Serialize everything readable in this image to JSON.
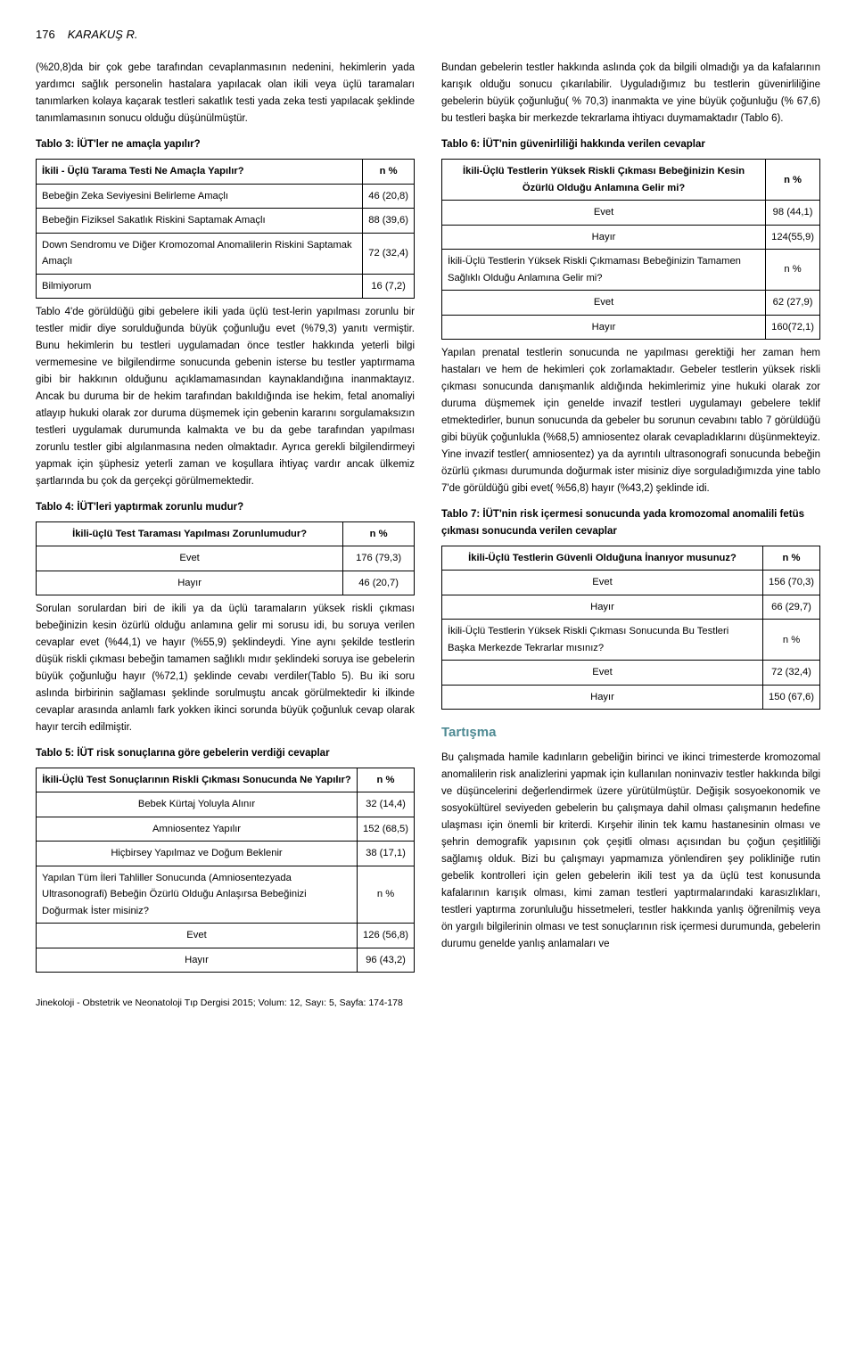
{
  "page_number": "176",
  "author": "KARAKUŞ R.",
  "left": {
    "p1": "(%20,8)da bir çok gebe tarafından cevaplanmasının nedenini, hekimlerin yada yardımcı sağlık personelin hastalara yapılacak olan ikili veya üçlü taramaları tanımlarken kolaya kaçarak testleri sakatlık testi yada zeka testi yapılacak şeklinde tanımlamasının sonucu olduğu düşünülmüştür.",
    "table3_caption": "Tablo 3: İÜT'ler ne amaçla yapılır?",
    "table3": {
      "header_q": "İkili - Üçlü Tarama Testi Ne Amaçla Yapılır?",
      "header_v": "n  %",
      "rows": [
        {
          "label": "Bebeğin Zeka Seviyesini Belirleme Amaçlı",
          "val": "46 (20,8)"
        },
        {
          "label": "Bebeğin Fiziksel Sakatlık Riskini Saptamak Amaçlı",
          "val": "88 (39,6)"
        },
        {
          "label": "Down Sendromu ve Diğer Kromozomal Anomalilerin Riskini Saptamak Amaçlı",
          "val": "72 (32,4)"
        },
        {
          "label": "Bilmiyorum",
          "val": "16 (7,2)"
        }
      ]
    },
    "p2": "Tablo 4'de görüldüğü gibi gebelere ikili yada üçlü test-lerin yapılması zorunlu bir testler midir diye sorulduğunda büyük çoğunluğu evet (%79,3) yanıtı vermiştir. Bunu hekimlerin bu testleri uygulamadan önce testler hakkında yeterli bilgi vermemesine ve bilgilendirme sonucunda gebenin isterse bu testler yaptırmama gibi bir hakkının olduğunu açıklamamasından kaynaklandığına inanmaktayız. Ancak bu duruma bir de hekim tarafından bakıldığında ise hekim, fetal anomaliyi atlayıp hukuki olarak zor duruma düşmemek için gebenin kararını sorgulamaksızın testleri uygulamak durumunda kalmakta ve bu da gebe tarafından yapılması zorunlu testler gibi algılanmasına neden olmaktadır. Ayrıca gerekli bilgilendirmeyi yapmak için şüphesiz yeterli zaman ve koşullara ihtiyaç vardır ancak ülkemiz şartlarında bu çok da gerçekçi görülmemektedir.",
    "table4_caption": "Tablo 4: İÜT'leri yaptırmak zorunlu mudur?",
    "table4": {
      "header_q": "İkili-üçlü Test Taraması Yapılması Zorunlumudur?",
      "header_v": "n  %",
      "rows": [
        {
          "label": "Evet",
          "val": "176 (79,3)"
        },
        {
          "label": "Hayır",
          "val": "46 (20,7)"
        }
      ]
    },
    "p3": "Sorulan sorulardan biri de ikili ya da üçlü taramaların yüksek riskli çıkması bebeğinizin kesin özürlü olduğu anlamına gelir mi sorusu idi, bu soruya verilen cevaplar evet (%44,1) ve hayır (%55,9) şeklindeydi. Yine aynı şekilde testlerin düşük riskli çıkması bebeğin tamamen sağlıklı mıdır şeklindeki soruya ise gebelerin büyük çoğunluğu hayır (%72,1) şeklinde cevabı verdiler(Tablo 5). Bu iki soru aslında birbirinin sağlaması şeklinde sorulmuştu ancak görülmektedir ki ilkinde cevaplar arasında anlamlı fark yokken ikinci sorunda büyük çoğunluk cevap olarak hayır tercih edilmiştir.",
    "table5_caption": "Tablo 5: İÜT risk sonuçlarına göre gebelerin verdiği cevaplar",
    "table5": {
      "header_q1": "İkili-Üçlü Test Sonuçlarının Riskli  Çıkması Sonucunda Ne Yapılır?",
      "header_v": "n  %",
      "rows1": [
        {
          "label": "Bebek Kürtaj Yoluyla Alınır",
          "val": "32 (14,4)"
        },
        {
          "label": "Amniosentez  Yapılır",
          "val": "152 (68,5)"
        },
        {
          "label": "Hiçbirsey Yapılmaz ve  Doğum Beklenir",
          "val": "38 (17,1)"
        }
      ],
      "header_q2": "Yapılan Tüm İleri Tahliller Sonucunda (Amniosentezyada Ultrasonografi) Bebeğin Özürlü Olduğu Anlaşırsa  Bebeğinizi Doğurmak İster misiniz?",
      "rows2": [
        {
          "label": "Evet",
          "val": "126 (56,8)"
        },
        {
          "label": "Hayır",
          "val": "96 (43,2)"
        }
      ]
    }
  },
  "right": {
    "p1": "Bundan gebelerin testler hakkında aslında çok da bilgili olmadığı ya da kafalarının karışık olduğu sonucu çıkarılabilir. Uyguladığımız bu testlerin güvenirliliğine gebelerin büyük çoğunluğu( % 70,3) inanmakta ve yine büyük çoğunluğu (% 67,6) bu testleri başka bir merkezde tekrarlama ihtiyacı duymamaktadır (Tablo 6).",
    "table6_caption": "Tablo 6: İÜT'nin güvenirliliği hakkında verilen cevaplar",
    "table6": {
      "header_q1": "İkili-Üçlü Testlerin Yüksek Riskli Çıkması Bebeğinizin Kesin Özürlü Olduğu Anlamına Gelir mi?",
      "header_v": "n      %",
      "rows1": [
        {
          "label": "Evet",
          "val": "98 (44,1)"
        },
        {
          "label": "Hayır",
          "val": "124(55,9)"
        }
      ],
      "header_q2": "İkili-Üçlü Testlerin Yüksek Riskli Çıkmaması Bebeğinizin Tamamen Sağlıklı Olduğu Anlamına Gelir mi?",
      "rows2": [
        {
          "label": "Evet",
          "val": "62 (27,9)"
        },
        {
          "label": "Hayır",
          "val": "160(72,1)"
        }
      ]
    },
    "p2": "Yapılan prenatal testlerin sonucunda ne yapılması gerektiği her zaman hem hastaları ve hem de hekimleri çok zorlamaktadır. Gebeler testlerin yüksek riskli çıkması sonucunda danışmanlık aldığında hekimlerimiz yine hukuki olarak zor duruma düşmemek için genelde invazif testleri uygulamayı gebelere teklif etmektedirler, bunun sonucunda da gebeler bu sorunun cevabını tablo 7 görüldüğü gibi büyük çoğunlukla (%68,5) amniosentez olarak cevapladıklarını düşünmekteyiz. Yine invazif testler( amniosentez) ya da ayrıntılı ultrasonografi sonucunda bebeğin özürlü çıkması durumunda doğurmak ister misiniz diye sorguladığımızda yine tablo 7'de görüldüğü gibi evet( %56,8) hayır (%43,2) şeklinde idi.",
    "table7_caption": "Tablo 7: İÜT'nin risk içermesi sonucunda yada kromozomal anomalili fetüs çıkması sonucunda verilen cevaplar",
    "table7": {
      "header_q1": "İkili-Üçlü Testlerin Güvenli Olduğuna İnanıyor musunuz?",
      "header_v": "n      %",
      "rows1": [
        {
          "label": "Evet",
          "val": "156 (70,3)"
        },
        {
          "label": "Hayır",
          "val": "66   (29,7)"
        }
      ],
      "header_q2": "İkili-Üçlü Testlerin Yüksek Riskli Çıkması Sonucunda Bu Testleri Başka Merkezde Tekrarlar mısınız?",
      "rows2": [
        {
          "label": "Evet",
          "val": "72 (32,4)"
        },
        {
          "label": "Hayır",
          "val": "150 (67,6)"
        }
      ]
    },
    "section_head": "Tartışma",
    "p3": "Bu çalışmada hamile kadınların gebeliğin birinci ve ikinci trimesterde kromozomal anomalilerin risk analizlerini yapmak için kullanılan noninvaziv testler hakkında bilgi ve düşüncelerini değerlendirmek üzere yürütülmüştür. Değişik sosyoekonomik ve sosyokültürel seviyeden gebelerin bu çalışmaya dahil olması çalışmanın hedefine ulaşması için önemli bir kriterdi. Kırşehir ilinin tek kamu hastanesinin olması ve şehrin demografik yapısının çok çeşitli olması açısından bu çoğun çeşitliliği sağlamış olduk. Bizi bu çalışmayı yapmamıza yönlendiren şey polikliniğe rutin gebelik kontrolleri için gelen gebelerin ikili test ya da üçlü test konusunda kafalarının karışık olması, kimi zaman testleri yaptırmalarındaki karasızlıkları, testleri yaptırma zorunluluğu hissetmeleri, testler hakkında yanlış öğrenilmiş veya ön yargılı bilgilerinin olması ve test sonuçlarının risk içermesi durumunda, gebelerin durumu genelde yanlış anlamaları ve"
  },
  "footer": "Jinekoloji - Obstetrik ve Neonatoloji Tıp Dergisi 2015; Volum: 12, Sayı: 5, Sayfa: 174-178"
}
